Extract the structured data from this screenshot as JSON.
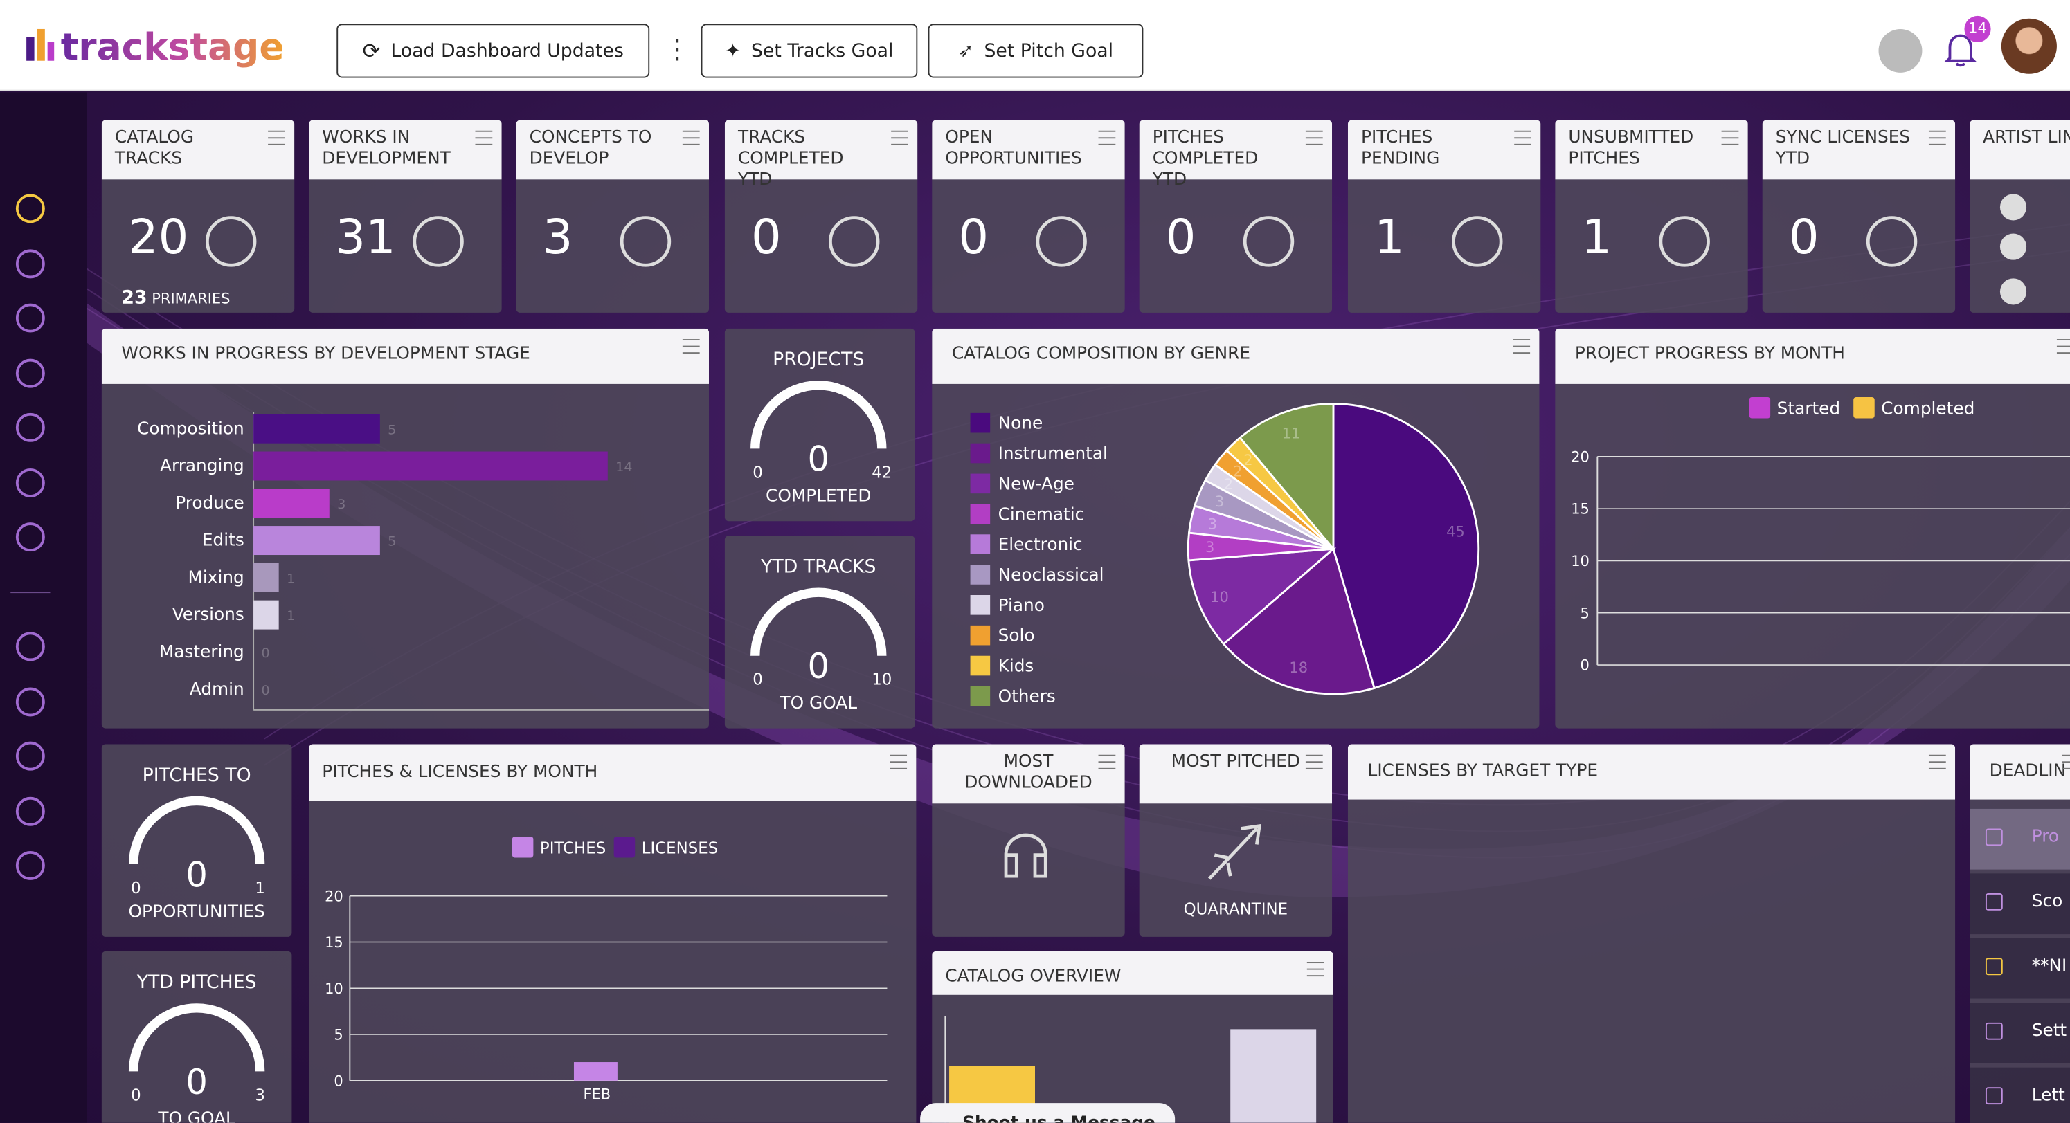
{
  "header": {
    "logo": "trackstage",
    "buttons": [
      "Load Dashboard Updates",
      "Set Tracks Goal",
      "Set Pitch Goal"
    ],
    "notifications": 14
  },
  "stat_cards": [
    {
      "title": "CATALOG TRACKS",
      "value": 20,
      "sub_value": 23,
      "sub_label": "PRIMARIES"
    },
    {
      "title": "WORKS IN DEVELOPMENT",
      "value": 31
    },
    {
      "title": "CONCEPTS TO DEVELOP",
      "value": 3
    },
    {
      "title": "TRACKS COMPLETED YTD",
      "value": 0
    },
    {
      "title": "OPEN OPPORTUNITIES",
      "value": 0
    },
    {
      "title": "PITCHES COMPLETED YTD",
      "value": 0
    },
    {
      "title": "PITCHES PENDING",
      "value": 1
    },
    {
      "title": "UNSUBMITTED PITCHES",
      "value": 1
    },
    {
      "title": "SYNC LICENSES YTD",
      "value": 0
    },
    {
      "title": "ARTIST LINKS"
    }
  ],
  "wip": {
    "type": "bar",
    "title": "WORKS IN PROGRESS BY DEVELOPMENT STAGE",
    "categories": [
      "Composition",
      "Arranging",
      "Produce",
      "Edits",
      "Mixing",
      "Versions",
      "Mastering",
      "Admin"
    ],
    "values": [
      5,
      14,
      3,
      5,
      1,
      1,
      0,
      0
    ],
    "colors": [
      "#4a0f85",
      "#7a1e9c",
      "#b93cc9",
      "#b985dc",
      "#a898bc",
      "#dcd6e8",
      "#888888",
      "#888888"
    ],
    "xlim": [
      0,
      18
    ]
  },
  "gauges": [
    {
      "title": "PROJECTS",
      "value": 0,
      "min": 0,
      "max": 42,
      "label": "COMPLETED"
    },
    {
      "title": "YTD TRACKS",
      "value": 0,
      "min": 0,
      "max": 10,
      "label": "TO GOAL"
    },
    {
      "title": "PITCHES TO",
      "value": 0,
      "min": 0,
      "max": 1,
      "label": "OPPORTUNITIES"
    },
    {
      "title": "YTD PITCHES",
      "value": 0,
      "min": 0,
      "max": 3,
      "label": "TO GOAL"
    }
  ],
  "genre": {
    "type": "pie",
    "title": "CATALOG COMPOSITION BY GENRE",
    "categories": [
      "None",
      "Instrumental",
      "New-Age",
      "Cinematic",
      "Electronic",
      "Neoclassical",
      "Piano",
      "Solo",
      "Kids",
      "Others"
    ],
    "values": [
      45,
      18,
      10,
      3,
      3,
      3,
      2,
      2,
      2,
      11
    ],
    "colors": [
      "#4a0a7e",
      "#6a1a8c",
      "#7d2aa3",
      "#b23ec4",
      "#b67ad9",
      "#a898c2",
      "#dcd6e8",
      "#f0a030",
      "#f6c843",
      "#7c9a4c"
    ]
  },
  "progress": {
    "type": "bar",
    "title": "PROJECT PROGRESS BY MONTH",
    "series": [
      {
        "name": "Started",
        "color": "#c23fd0"
      },
      {
        "name": "Completed",
        "color": "#f6c343"
      }
    ],
    "ylim": [
      0,
      20
    ],
    "yticks": [
      0,
      5,
      10,
      15,
      20
    ]
  },
  "pitches_licenses": {
    "type": "bar",
    "title": "PITCHES & LICENSES BY MONTH",
    "categories": [
      "FEB"
    ],
    "series": [
      {
        "name": "PITCHES",
        "color": "#c585e6",
        "values": [
          2
        ]
      },
      {
        "name": "LICENSES",
        "color": "#5b1a8e",
        "values": [
          0
        ]
      }
    ],
    "ylim": [
      0,
      20
    ],
    "yticks": [
      0,
      5,
      10,
      15,
      20
    ]
  },
  "most_downloaded": {
    "title": "MOST DOWNLOADED"
  },
  "most_pitched": {
    "title": "MOST PITCHED",
    "label": "QUARANTINE"
  },
  "catalog_overview": {
    "title": "CATALOG OVERVIEW"
  },
  "licenses": {
    "title": "LICENSES BY TARGET TYPE"
  },
  "deadlines": {
    "title": "DEADLIN",
    "items": [
      "Pro",
      "Sco",
      "**NI",
      "Sett",
      "Lett"
    ]
  },
  "chat": "Shoot us a Message"
}
